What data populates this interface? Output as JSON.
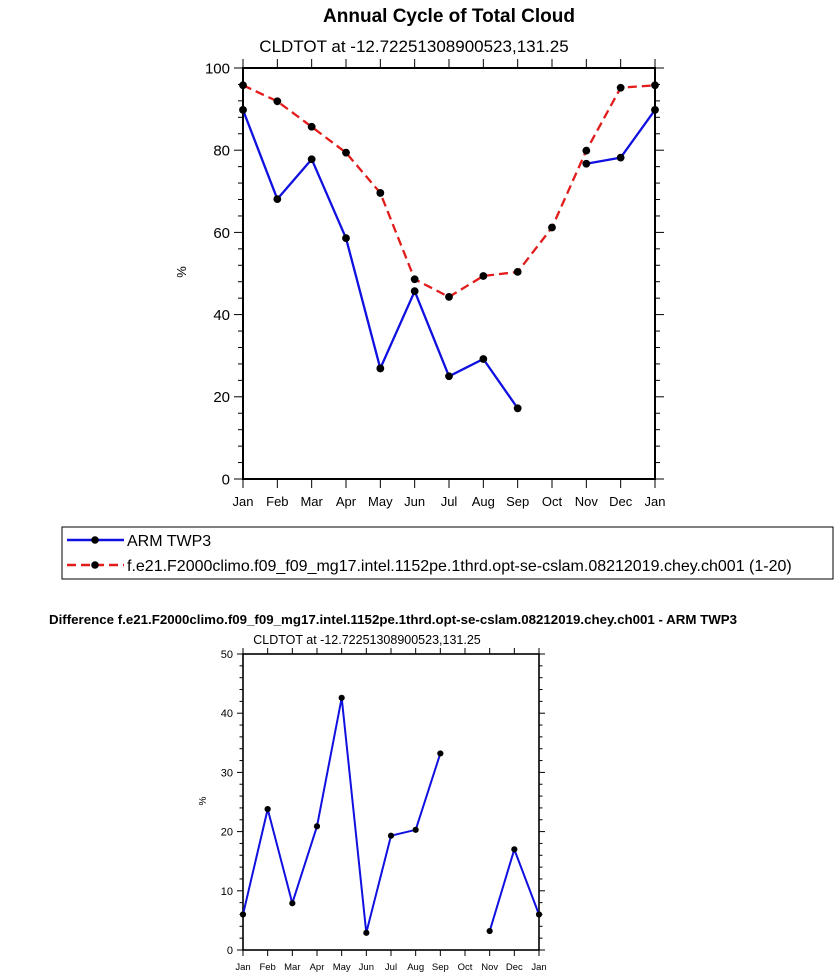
{
  "chart_data": [
    {
      "type": "line",
      "title": "Annual Cycle of Total Cloud",
      "subtitle": "CLDTOT at -12.72251308900523,131.25",
      "xlabel": "",
      "ylabel": "%",
      "categories": [
        "Jan",
        "Feb",
        "Mar",
        "Apr",
        "May",
        "Jun",
        "Jul",
        "Aug",
        "Sep",
        "Oct",
        "Nov",
        "Dec",
        "Jan"
      ],
      "ylim": [
        0,
        100
      ],
      "yticks": [
        0,
        20,
        40,
        60,
        80,
        100
      ],
      "series": [
        {
          "name": "ARM TWP3",
          "color": "#1010e0",
          "dash": "solid",
          "values": [
            89.8,
            68.1,
            77.8,
            58.6,
            26.9,
            45.7,
            25.0,
            29.2,
            17.2,
            null,
            76.7,
            78.2,
            89.8
          ]
        },
        {
          "name": "f.e21.F2000climo.f09_f09_mg17.intel.1152pe.1thrd.opt-se-cslam.08212019.chey.ch001 (1-20)",
          "color": "#e21b1b",
          "dash": "dashed",
          "values": [
            95.8,
            91.9,
            85.7,
            79.4,
            69.6,
            48.6,
            44.3,
            49.4,
            50.4,
            61.2,
            79.9,
            95.2,
            95.8
          ]
        }
      ],
      "legend": "below"
    },
    {
      "type": "line",
      "title": "Difference f.e21.F2000climo.f09_f09_mg17.intel.1152pe.1thrd.opt-se-cslam.08212019.chey.ch001 - ARM TWP3",
      "subtitle": "CLDTOT at -12.72251308900523,131.25",
      "xlabel": "",
      "ylabel": "%",
      "categories": [
        "Jan",
        "Feb",
        "Mar",
        "Apr",
        "May",
        "Jun",
        "Jul",
        "Aug",
        "Sep",
        "Oct",
        "Nov",
        "Dec",
        "Jan"
      ],
      "ylim": [
        0,
        50
      ],
      "yticks": [
        0,
        10,
        20,
        30,
        40,
        50
      ],
      "series": [
        {
          "name": "Difference",
          "color": "#1010e0",
          "dash": "solid",
          "values": [
            6.0,
            23.8,
            7.9,
            20.9,
            42.6,
            2.9,
            19.3,
            20.3,
            33.2,
            null,
            3.2,
            17.0,
            6.0
          ]
        }
      ]
    }
  ]
}
